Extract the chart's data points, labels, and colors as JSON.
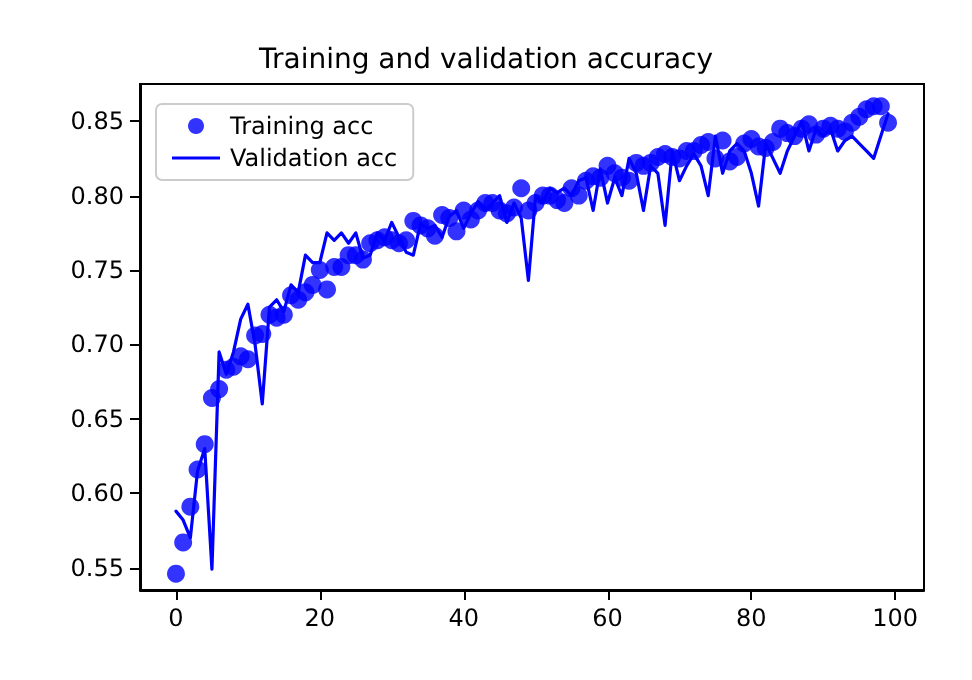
{
  "chart_data": {
    "type": "line",
    "title": "Training and validation accuracy",
    "x": [
      0,
      1,
      2,
      3,
      4,
      5,
      6,
      7,
      8,
      9,
      10,
      11,
      12,
      13,
      14,
      15,
      16,
      17,
      18,
      19,
      20,
      21,
      22,
      23,
      24,
      25,
      26,
      27,
      28,
      29,
      30,
      31,
      32,
      33,
      34,
      35,
      36,
      37,
      38,
      39,
      40,
      41,
      42,
      43,
      44,
      45,
      46,
      47,
      48,
      49,
      50,
      51,
      52,
      53,
      54,
      55,
      56,
      57,
      58,
      59,
      60,
      61,
      62,
      63,
      64,
      65,
      66,
      67,
      68,
      69,
      70,
      71,
      72,
      73,
      74,
      75,
      76,
      77,
      78,
      79,
      80,
      81,
      82,
      83,
      84,
      85,
      86,
      87,
      88,
      89,
      90,
      91,
      92,
      93,
      94,
      95,
      96,
      97,
      98,
      99
    ],
    "series": [
      {
        "name": "Training acc",
        "type": "scatter",
        "marker": "circle",
        "color": "#0000ff",
        "values": [
          0.546,
          0.567,
          0.591,
          0.616,
          0.633,
          0.664,
          0.67,
          0.683,
          0.685,
          0.692,
          0.69,
          0.706,
          0.707,
          0.72,
          0.718,
          0.72,
          0.733,
          0.73,
          0.735,
          0.74,
          0.75,
          0.737,
          0.752,
          0.752,
          0.76,
          0.76,
          0.757,
          0.768,
          0.77,
          0.772,
          0.77,
          0.768,
          0.77,
          0.783,
          0.78,
          0.778,
          0.773,
          0.787,
          0.785,
          0.776,
          0.79,
          0.784,
          0.79,
          0.795,
          0.795,
          0.79,
          0.788,
          0.792,
          0.805,
          0.79,
          0.795,
          0.8,
          0.8,
          0.797,
          0.795,
          0.805,
          0.8,
          0.81,
          0.813,
          0.812,
          0.82,
          0.815,
          0.812,
          0.81,
          0.822,
          0.82,
          0.822,
          0.826,
          0.828,
          0.826,
          0.825,
          0.83,
          0.83,
          0.834,
          0.836,
          0.825,
          0.837,
          0.823,
          0.826,
          0.835,
          0.838,
          0.833,
          0.832,
          0.836,
          0.845,
          0.842,
          0.84,
          0.845,
          0.848,
          0.841,
          0.845,
          0.847,
          0.845,
          0.843,
          0.849,
          0.853,
          0.858,
          0.86,
          0.86,
          0.849
        ]
      },
      {
        "name": "Validation acc",
        "marker": "none",
        "line_style": "solid",
        "color": "#0000ff",
        "values": [
          0.588,
          0.582,
          0.57,
          0.615,
          0.63,
          0.549,
          0.695,
          0.68,
          0.695,
          0.717,
          0.727,
          0.7,
          0.66,
          0.725,
          0.73,
          0.722,
          0.74,
          0.735,
          0.76,
          0.755,
          0.755,
          0.775,
          0.77,
          0.775,
          0.768,
          0.775,
          0.758,
          0.76,
          0.775,
          0.77,
          0.782,
          0.772,
          0.762,
          0.76,
          0.781,
          0.778,
          0.78,
          0.772,
          0.786,
          0.79,
          0.778,
          0.788,
          0.796,
          0.79,
          0.795,
          0.8,
          0.782,
          0.795,
          0.785,
          0.743,
          0.8,
          0.795,
          0.805,
          0.802,
          0.805,
          0.8,
          0.81,
          0.812,
          0.79,
          0.818,
          0.795,
          0.812,
          0.8,
          0.825,
          0.815,
          0.79,
          0.82,
          0.815,
          0.78,
          0.83,
          0.81,
          0.82,
          0.828,
          0.82,
          0.8,
          0.84,
          0.815,
          0.83,
          0.835,
          0.83,
          0.815,
          0.793,
          0.835,
          0.825,
          0.815,
          0.83,
          0.84,
          0.85,
          0.83,
          0.845,
          0.84,
          0.845,
          0.83,
          0.837,
          0.84,
          0.835,
          0.83,
          0.825,
          0.84,
          0.855
        ]
      }
    ],
    "xlim": [
      -5,
      104
    ],
    "xticks": [
      0,
      20,
      40,
      60,
      80,
      100
    ],
    "ylim": [
      0.535,
      0.875
    ],
    "yticks": [
      0.55,
      {
        "value": 0.6,
        "label": "0.60"
      },
      0.65,
      {
        "value": 0.7,
        "label": "0.70"
      },
      0.75,
      {
        "value": 0.8,
        "label": "0.80"
      },
      0.85
    ],
    "grid": false,
    "legend": "top left"
  }
}
